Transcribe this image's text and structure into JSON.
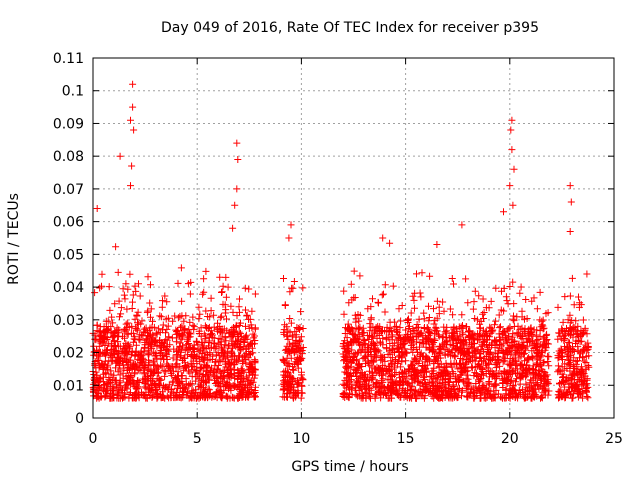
{
  "chart_data": {
    "type": "scatter",
    "title": "Day 049 of 2016, Rate Of TEC Index for receiver p395",
    "xlabel": "GPS time / hours",
    "ylabel": "ROTI / TECUs",
    "xlim": [
      0,
      25
    ],
    "ylim": [
      0,
      0.11
    ],
    "xticks": [
      "0",
      "5",
      "10",
      "15",
      "20",
      "25"
    ],
    "yticks": [
      "0",
      "0.01",
      "0.02",
      "0.03",
      "0.04",
      "0.05",
      "0.06",
      "0.07",
      "0.08",
      "0.09",
      "0.1",
      "0.11"
    ],
    "grid": true,
    "marker": "+",
    "marker_color": "#ff0000",
    "segments": [
      {
        "start": 0.0,
        "end": 7.8
      },
      {
        "start": 9.1,
        "end": 10.1
      },
      {
        "start": 12.0,
        "end": 21.9
      },
      {
        "start": 22.3,
        "end": 23.8
      }
    ],
    "notable_points": [
      {
        "x": 1.9,
        "y": 0.102
      },
      {
        "x": 1.9,
        "y": 0.095
      },
      {
        "x": 1.8,
        "y": 0.091
      },
      {
        "x": 1.95,
        "y": 0.088
      },
      {
        "x": 1.3,
        "y": 0.08
      },
      {
        "x": 1.85,
        "y": 0.077
      },
      {
        "x": 1.8,
        "y": 0.071
      },
      {
        "x": 0.2,
        "y": 0.064
      },
      {
        "x": 6.9,
        "y": 0.084
      },
      {
        "x": 6.95,
        "y": 0.079
      },
      {
        "x": 6.9,
        "y": 0.07
      },
      {
        "x": 6.8,
        "y": 0.065
      },
      {
        "x": 6.7,
        "y": 0.058
      },
      {
        "x": 9.5,
        "y": 0.059
      },
      {
        "x": 9.4,
        "y": 0.055
      },
      {
        "x": 13.9,
        "y": 0.055
      },
      {
        "x": 16.5,
        "y": 0.053
      },
      {
        "x": 17.7,
        "y": 0.059
      },
      {
        "x": 19.7,
        "y": 0.063
      },
      {
        "x": 20.1,
        "y": 0.091
      },
      {
        "x": 20.05,
        "y": 0.088
      },
      {
        "x": 20.1,
        "y": 0.082
      },
      {
        "x": 20.2,
        "y": 0.076
      },
      {
        "x": 20.0,
        "y": 0.071
      },
      {
        "x": 20.15,
        "y": 0.065
      },
      {
        "x": 22.9,
        "y": 0.071
      },
      {
        "x": 22.95,
        "y": 0.066
      },
      {
        "x": 22.9,
        "y": 0.057
      },
      {
        "x": 23.7,
        "y": 0.044
      }
    ]
  }
}
